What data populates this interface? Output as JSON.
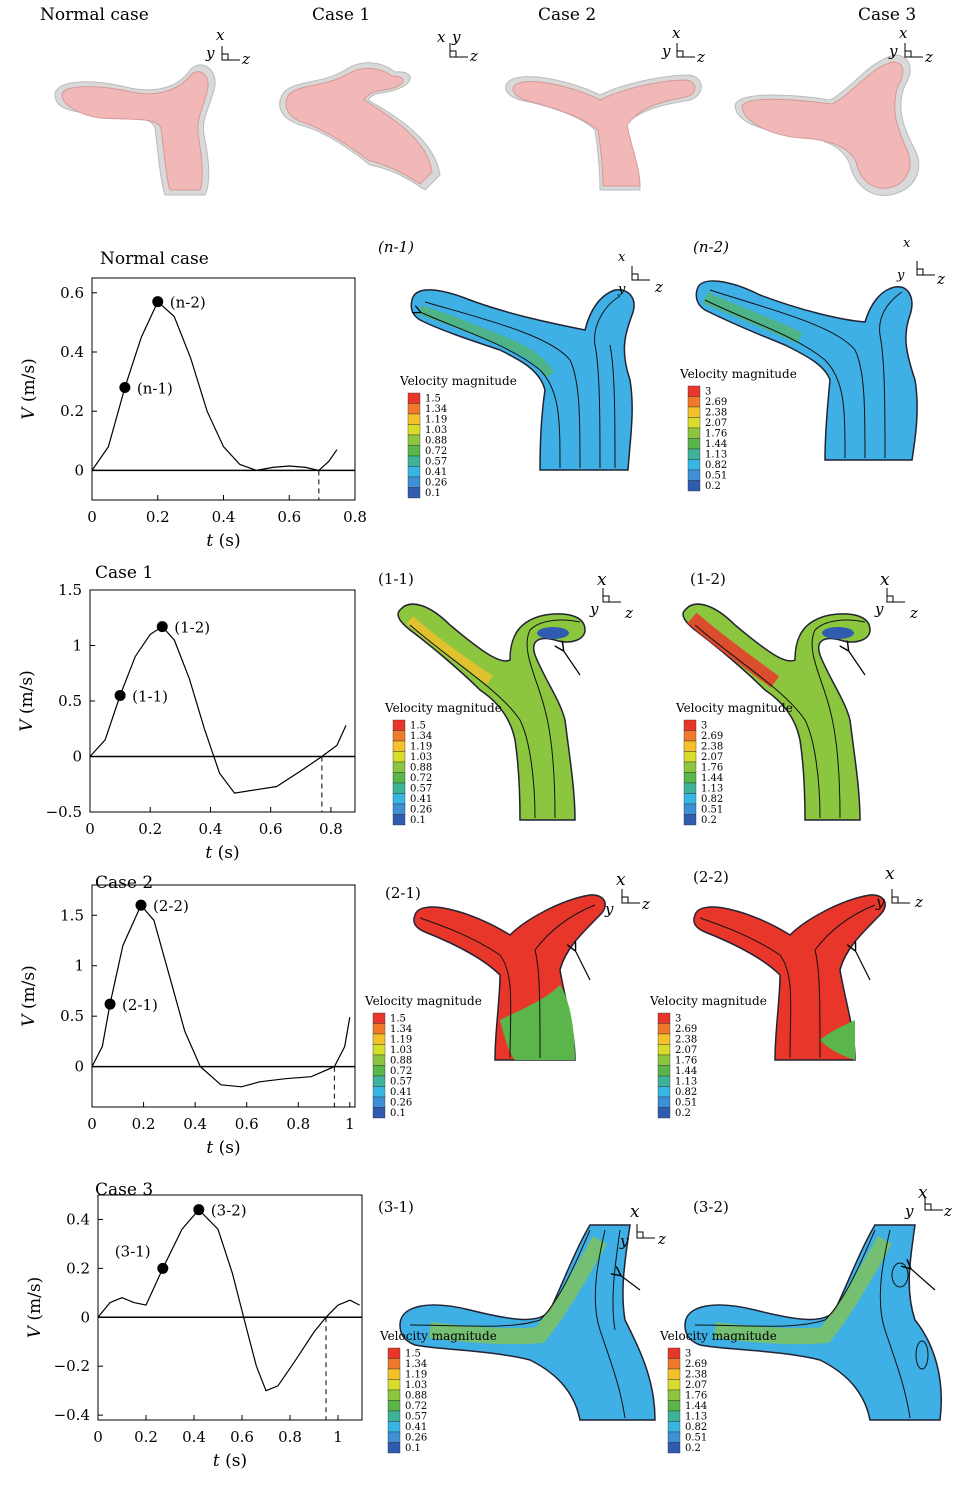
{
  "top_row": {
    "titles": [
      "Normal case",
      "Case 1",
      "Case 2",
      "Case 3"
    ],
    "axes_letters": {
      "x": "x",
      "y": "y",
      "z": "z"
    }
  },
  "legend": {
    "title": "Velocity magnitude",
    "scale_low": [
      "1.5",
      "1.34",
      "1.19",
      "1.03",
      "0.88",
      "0.72",
      "0.57",
      "0.41",
      "0.26",
      "0.1"
    ],
    "scale_high": [
      "3",
      "2.69",
      "2.38",
      "2.07",
      "1.76",
      "1.44",
      "1.13",
      "0.82",
      "0.51",
      "0.2"
    ],
    "colors": [
      "#e8372a",
      "#f07a2a",
      "#f4c12a",
      "#d8dc2a",
      "#8cc63f",
      "#5ab54a",
      "#3fb39a",
      "#38b6e3",
      "#3d8fd6",
      "#2f5bb0"
    ]
  },
  "chart_data": [
    {
      "type": "line",
      "title": "Normal case",
      "xlabel": "t (s)",
      "ylabel": "V (m/s)",
      "xlim": [
        0,
        0.8
      ],
      "ylim": [
        -0.1,
        0.65
      ],
      "xticks": [
        "0",
        "0.2",
        "0.4",
        "0.6",
        "0.8"
      ],
      "yticks": [
        "0",
        "0.2",
        "0.4",
        "0.6"
      ],
      "points": [
        {
          "label": "(n-1)",
          "x": 0.1,
          "y": 0.28
        },
        {
          "label": "(n-2)",
          "x": 0.2,
          "y": 0.57
        }
      ],
      "dashed_x": 0.69,
      "panels": [
        "(n-1)",
        "(n-2)"
      ]
    },
    {
      "type": "line",
      "title": "Case 1",
      "xlabel": "t (s)",
      "ylabel": "V (m/s)",
      "xlim": [
        0,
        0.88
      ],
      "ylim": [
        -0.5,
        1.5
      ],
      "xticks": [
        "0",
        "0.2",
        "0.4",
        "0.6",
        "0.8"
      ],
      "yticks": [
        "-0.5",
        "0",
        "0.5",
        "1",
        "1.5"
      ],
      "points": [
        {
          "label": "(1-1)",
          "x": 0.1,
          "y": 0.55
        },
        {
          "label": "(1-2)",
          "x": 0.24,
          "y": 1.17
        }
      ],
      "dashed_x": 0.77,
      "panels": [
        "(1-1)",
        "(1-2)"
      ]
    },
    {
      "type": "line",
      "title": "Case 2",
      "xlabel": "t (s)",
      "ylabel": "V (m/s)",
      "xlim": [
        0,
        1.02
      ],
      "ylim": [
        -0.4,
        1.8
      ],
      "xticks": [
        "0",
        "0.2",
        "0.4",
        "0.6",
        "0.8",
        "1"
      ],
      "yticks": [
        "0",
        "0.5",
        "1",
        "1.5"
      ],
      "points": [
        {
          "label": "(2-1)",
          "x": 0.07,
          "y": 0.62
        },
        {
          "label": "(2-2)",
          "x": 0.19,
          "y": 1.6
        }
      ],
      "dashed_x": 0.94,
      "panels": [
        "(2-1)",
        "(2-2)"
      ]
    },
    {
      "type": "line",
      "title": "Case 3",
      "xlabel": "t (s)",
      "ylabel": "V (m/s)",
      "xlim": [
        0,
        1.1
      ],
      "ylim": [
        -0.42,
        0.5
      ],
      "xticks": [
        "0",
        "0.2",
        "0.4",
        "0.6",
        "0.8",
        "1"
      ],
      "yticks": [
        "-0.4",
        "-0.2",
        "0",
        "0.2",
        "0.4"
      ],
      "points": [
        {
          "label": "(3-1)",
          "x": 0.27,
          "y": 0.2
        },
        {
          "label": "(3-2)",
          "x": 0.42,
          "y": 0.44
        }
      ],
      "dashed_x": 0.95,
      "panels": [
        "(3-1)",
        "(3-2)"
      ]
    }
  ]
}
